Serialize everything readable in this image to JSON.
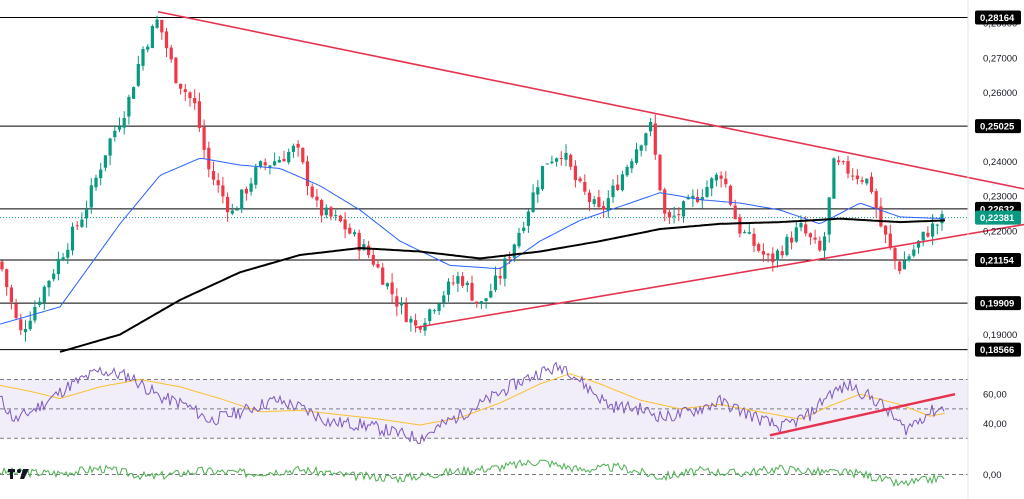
{
  "chart_data": [
    {
      "type": "candlestick",
      "price_axis": {
        "ticks": [
          "0,28000",
          "0,27000",
          "0,26000",
          "0,24000",
          "0,23000",
          "0,22000",
          "0,19000"
        ],
        "tick_values": [
          0.28,
          0.27,
          0.26,
          0.24,
          0.23,
          0.22,
          0.19
        ],
        "range": [
          0.1838,
          0.2867
        ],
        "decimal_separator": ","
      },
      "horizontal_levels": [
        {
          "label": "0,28164",
          "value": 0.28164
        },
        {
          "label": "0,25025",
          "value": 0.25025
        },
        {
          "label": "0,22632",
          "value": 0.22632
        },
        {
          "label": "0,21154",
          "value": 0.21154
        },
        {
          "label": "0,19909",
          "value": 0.19909
        },
        {
          "label": "0,18566",
          "value": 0.18566
        }
      ],
      "current_price": {
        "label": "0,22381",
        "value": 0.22381
      },
      "price_keypoints": [
        [
          0,
          0.211
        ],
        [
          20,
          0.19
        ],
        [
          45,
          0.204
        ],
        [
          85,
          0.226
        ],
        [
          108,
          0.245
        ],
        [
          128,
          0.257
        ],
        [
          142,
          0.272
        ],
        [
          158,
          0.281
        ],
        [
          175,
          0.265
        ],
        [
          195,
          0.256
        ],
        [
          208,
          0.238
        ],
        [
          232,
          0.225
        ],
        [
          258,
          0.238
        ],
        [
          280,
          0.241
        ],
        [
          296,
          0.244
        ],
        [
          318,
          0.226
        ],
        [
          342,
          0.222
        ],
        [
          372,
          0.212
        ],
        [
          398,
          0.199
        ],
        [
          416,
          0.192
        ],
        [
          440,
          0.201
        ],
        [
          460,
          0.207
        ],
        [
          480,
          0.198
        ],
        [
          500,
          0.207
        ],
        [
          525,
          0.224
        ],
        [
          545,
          0.24
        ],
        [
          562,
          0.243
        ],
        [
          578,
          0.233
        ],
        [
          600,
          0.225
        ],
        [
          618,
          0.234
        ],
        [
          636,
          0.244
        ],
        [
          650,
          0.251
        ],
        [
          666,
          0.222
        ],
        [
          690,
          0.228
        ],
        [
          722,
          0.237
        ],
        [
          738,
          0.221
        ],
        [
          770,
          0.211
        ],
        [
          800,
          0.221
        ],
        [
          822,
          0.213
        ],
        [
          834,
          0.239
        ],
        [
          852,
          0.237
        ],
        [
          870,
          0.234
        ],
        [
          880,
          0.222
        ],
        [
          898,
          0.209
        ],
        [
          912,
          0.214
        ],
        [
          928,
          0.22
        ],
        [
          945,
          0.2238
        ]
      ],
      "ma_fast_keypoints": [
        [
          0,
          0.193
        ],
        [
          60,
          0.198
        ],
        [
          120,
          0.222
        ],
        [
          160,
          0.236
        ],
        [
          200,
          0.241
        ],
        [
          240,
          0.239
        ],
        [
          280,
          0.238
        ],
        [
          320,
          0.233
        ],
        [
          360,
          0.226
        ],
        [
          400,
          0.217
        ],
        [
          450,
          0.21
        ],
        [
          500,
          0.209
        ],
        [
          540,
          0.217
        ],
        [
          580,
          0.223
        ],
        [
          620,
          0.227
        ],
        [
          660,
          0.231
        ],
        [
          700,
          0.229
        ],
        [
          740,
          0.228
        ],
        [
          780,
          0.226
        ],
        [
          820,
          0.222
        ],
        [
          860,
          0.228
        ],
        [
          900,
          0.224
        ],
        [
          945,
          0.2235
        ]
      ],
      "ma_slow_keypoints": [
        [
          60,
          0.185
        ],
        [
          120,
          0.19
        ],
        [
          180,
          0.2
        ],
        [
          240,
          0.208
        ],
        [
          300,
          0.213
        ],
        [
          360,
          0.215
        ],
        [
          420,
          0.214
        ],
        [
          480,
          0.212
        ],
        [
          540,
          0.214
        ],
        [
          600,
          0.217
        ],
        [
          660,
          0.2205
        ],
        [
          720,
          0.222
        ],
        [
          780,
          0.2225
        ],
        [
          840,
          0.2235
        ],
        [
          900,
          0.2225
        ],
        [
          945,
          0.223
        ]
      ],
      "trendlines": [
        {
          "from": [
            158,
            0.2833
          ],
          "to": [
            1024,
            0.2321
          ]
        },
        {
          "from": [
            415,
            0.192
          ],
          "to": [
            1024,
            0.2218
          ]
        }
      ]
    },
    {
      "type": "line",
      "indicator_axis": {
        "ticks": [
          "60,00",
          "40,00"
        ],
        "tick_values": [
          60,
          40
        ],
        "range": [
          22,
          86
        ]
      },
      "bands": [
        70,
        50,
        30
      ],
      "fast_keypoints": [
        [
          0,
          57
        ],
        [
          15,
          42
        ],
        [
          40,
          52
        ],
        [
          70,
          66
        ],
        [
          100,
          76
        ],
        [
          130,
          72
        ],
        [
          160,
          58
        ],
        [
          185,
          53
        ],
        [
          210,
          42
        ],
        [
          245,
          49
        ],
        [
          275,
          56
        ],
        [
          300,
          51
        ],
        [
          330,
          41
        ],
        [
          365,
          39
        ],
        [
          400,
          33
        ],
        [
          420,
          30
        ],
        [
          450,
          42
        ],
        [
          480,
          53
        ],
        [
          510,
          65
        ],
        [
          540,
          75
        ],
        [
          565,
          79
        ],
        [
          585,
          66
        ],
        [
          610,
          52
        ],
        [
          640,
          50
        ],
        [
          665,
          44
        ],
        [
          690,
          48
        ],
        [
          720,
          55
        ],
        [
          750,
          46
        ],
        [
          780,
          37
        ],
        [
          810,
          46
        ],
        [
          828,
          60
        ],
        [
          850,
          66
        ],
        [
          880,
          54
        ],
        [
          905,
          36
        ],
        [
          930,
          48
        ],
        [
          945,
          51
        ]
      ],
      "slow_keypoints": [
        [
          0,
          66
        ],
        [
          30,
          62
        ],
        [
          60,
          57
        ],
        [
          100,
          65
        ],
        [
          140,
          70
        ],
        [
          180,
          65
        ],
        [
          220,
          57
        ],
        [
          260,
          48
        ],
        [
          300,
          49
        ],
        [
          340,
          46
        ],
        [
          380,
          43
        ],
        [
          420,
          39
        ],
        [
          460,
          44
        ],
        [
          500,
          54
        ],
        [
          540,
          67
        ],
        [
          570,
          74
        ],
        [
          600,
          67
        ],
        [
          640,
          56
        ],
        [
          680,
          50
        ],
        [
          720,
          53
        ],
        [
          760,
          48
        ],
        [
          800,
          43
        ],
        [
          830,
          52
        ],
        [
          860,
          60
        ],
        [
          900,
          53
        ],
        [
          930,
          45
        ],
        [
          945,
          47
        ]
      ],
      "trendline": {
        "from": [
          770,
          32
        ],
        "to": [
          955,
          60
        ]
      }
    },
    {
      "type": "line",
      "indicator_axis": {
        "ticks": [
          "0,00"
        ],
        "tick_values": [
          0
        ],
        "range": [
          -1,
          1
        ]
      },
      "keypoints": [
        [
          0,
          0.1
        ],
        [
          60,
          0.05
        ],
        [
          100,
          0.25
        ],
        [
          150,
          -0.1
        ],
        [
          200,
          0.15
        ],
        [
          250,
          0.05
        ],
        [
          300,
          0.2
        ],
        [
          350,
          -0.05
        ],
        [
          400,
          -0.15
        ],
        [
          450,
          0.1
        ],
        [
          500,
          0.3
        ],
        [
          540,
          0.55
        ],
        [
          580,
          0.2
        ],
        [
          620,
          0.3
        ],
        [
          660,
          -0.1
        ],
        [
          700,
          0.15
        ],
        [
          740,
          0.05
        ],
        [
          780,
          0.25
        ],
        [
          820,
          0.1
        ],
        [
          860,
          0.05
        ],
        [
          900,
          -0.4
        ],
        [
          945,
          -0.1
        ]
      ]
    }
  ],
  "colors": {
    "up": "#089981",
    "down": "#f23645",
    "ma_fast": "#2962ff",
    "ma_slow": "#000000",
    "trendline": "#e5334f",
    "rsi": "#7e57c2",
    "rsi_ma": "#fbc02d",
    "rsi_band": "#7e57c2",
    "macd": "#4caf50",
    "level_tag": "#000000",
    "current_tag": "#089981",
    "text": "#131722"
  },
  "logo": {
    "name": "tradingview-logo",
    "text": "TV"
  }
}
